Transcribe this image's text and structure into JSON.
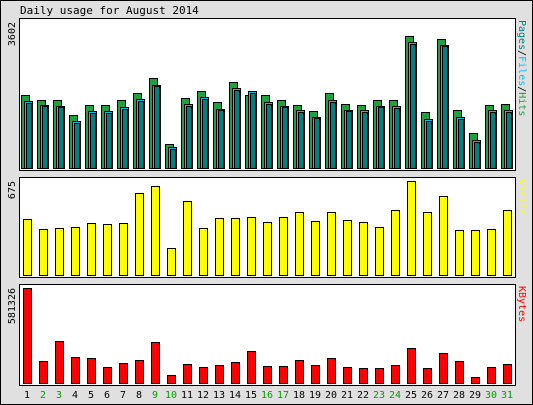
{
  "chart_data": {
    "type": "bar",
    "title": "Daily usage for August 2014",
    "colors": {
      "background": "#e0e0e0",
      "panel": "#ffffff",
      "hits": "#20a040",
      "files": "#00c0ff",
      "pages": "#008080",
      "visits": "#ffff00",
      "kbytes": "#ff0000",
      "weekend_label": "#00a000",
      "weekday_label": "#000000"
    },
    "categories": [
      "1",
      "2",
      "3",
      "4",
      "5",
      "6",
      "7",
      "8",
      "9",
      "10",
      "11",
      "12",
      "13",
      "14",
      "15",
      "16",
      "17",
      "18",
      "19",
      "20",
      "21",
      "22",
      "23",
      "24",
      "25",
      "26",
      "27",
      "28",
      "29",
      "30",
      "31"
    ],
    "weekend_days": [
      "2",
      "3",
      "9",
      "10",
      "16",
      "17",
      "23",
      "24",
      "30",
      "31"
    ],
    "panels": [
      {
        "id": "hits",
        "max_label": "3602",
        "ylim": [
          0,
          3602
        ],
        "legend": [
          {
            "text": "Pages",
            "color": "#008080"
          },
          {
            "text": "/",
            "color": "#000000"
          },
          {
            "text": "Files",
            "color": "#00c0ff"
          },
          {
            "text": "/",
            "color": "#000000"
          },
          {
            "text": "Hits",
            "color": "#20a040"
          }
        ],
        "series": [
          {
            "name": "Hits",
            "color": "#20a040",
            "values": [
              1800,
              1680,
              1680,
              1300,
              1550,
              1560,
              1680,
              1850,
              2210,
              580,
              1730,
              1900,
              1620,
              2110,
              1800,
              1800,
              1680,
              1560,
              1410,
              1850,
              1580,
              1560,
              1680,
              1680,
              3250,
              1380,
              3180,
              1430,
              870,
              1560,
              1580
            ]
          },
          {
            "name": "Files",
            "color": "#00c0ff",
            "values": [
              1650,
              1560,
              1530,
              1150,
              1400,
              1400,
              1500,
              1700,
              2060,
              510,
              1570,
              1750,
              1460,
              1970,
              1900,
              1630,
              1540,
              1430,
              1270,
              1670,
              1440,
              1420,
              1540,
              1530,
              3100,
              1210,
              3040,
              1260,
              680,
              1420,
              1420
            ]
          },
          {
            "name": "Pages",
            "color": "#008080",
            "values": [
              1610,
              1520,
              1500,
              1110,
              1360,
              1360,
              1460,
              1660,
              2020,
              480,
              1530,
              1710,
              1420,
              1930,
              1860,
              1590,
              1500,
              1390,
              1230,
              1630,
              1400,
              1380,
              1500,
              1490,
              3060,
              1170,
              3000,
              1220,
              650,
              1380,
              1380
            ]
          }
        ]
      },
      {
        "id": "visits",
        "max_label": "675",
        "ylim": [
          0,
          675
        ],
        "legend": [
          {
            "text": "Visits",
            "color": "#ffff00"
          }
        ],
        "series": [
          {
            "name": "Visits",
            "color": "#ffff00",
            "values": [
              400,
              330,
              335,
              345,
              375,
              365,
              375,
              590,
              640,
              195,
              530,
              335,
              410,
              410,
              420,
              380,
              415,
              455,
              390,
              455,
              395,
              380,
              345,
              465,
              675,
              455,
              565,
              325,
              325,
              330,
              470
            ]
          }
        ]
      },
      {
        "id": "kbytes",
        "max_label": "581326",
        "ylim": [
          0,
          581326
        ],
        "legend": [
          {
            "text": "KBytes",
            "color": "#ff0000"
          }
        ],
        "series": [
          {
            "name": "KBytes",
            "color": "#ff0000",
            "values": [
              581326,
              133000,
              258000,
              160000,
              152000,
              100000,
              120000,
              142000,
              250000,
              50000,
              116000,
              95000,
              110000,
              128000,
              193000,
              105000,
              104000,
              138000,
              111000,
              150000,
              97000,
              92000,
              93000,
              113000,
              215000,
              93000,
              183000,
              135000,
              35000,
              100000,
              118000
            ]
          }
        ]
      }
    ]
  }
}
